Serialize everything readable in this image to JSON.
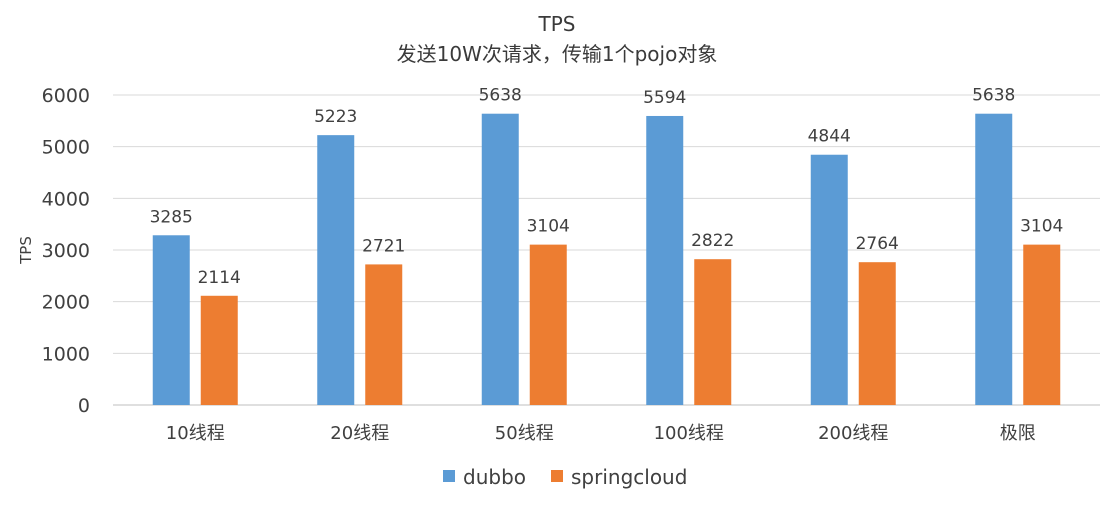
{
  "chart_data": {
    "type": "bar",
    "title": "TPS",
    "subtitle": "发送10W次请求，传输1个pojo对象",
    "xlabel": "",
    "ylabel": "TPS",
    "ylim": [
      0,
      6000
    ],
    "yticks": [
      0,
      1000,
      2000,
      3000,
      4000,
      5000,
      6000
    ],
    "grid": true,
    "legend_position": "bottom",
    "categories": [
      "10线程",
      "20线程",
      "50线程",
      "100线程",
      "200线程",
      "极限"
    ],
    "series": [
      {
        "name": "dubbo",
        "color": "#5B9BD5",
        "values": [
          3285,
          5223,
          5638,
          5594,
          4844,
          5638
        ]
      },
      {
        "name": "springcloud",
        "color": "#ED7D31",
        "values": [
          2114,
          2721,
          3104,
          2822,
          2764,
          3104
        ]
      }
    ]
  }
}
